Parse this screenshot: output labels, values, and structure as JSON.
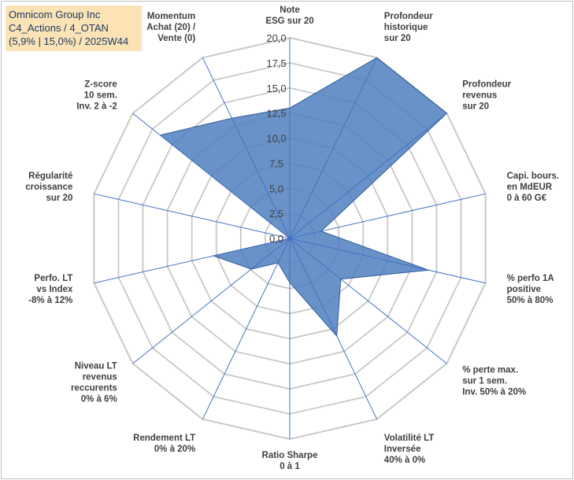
{
  "header": {
    "line1": "Omnicom Group Inc",
    "line2": "C4_Actions / 4_OTAN",
    "line3": "(5,9% | 15,0%) / 2025W44"
  },
  "colors": {
    "fill": "#4f7fbf",
    "stroke": "#2e5c99",
    "grid": "#c8c8c8",
    "axis": "#4472c4",
    "title_bg": "#fbe3b6",
    "title_text": "#1f3864"
  },
  "chart_data": {
    "type": "radar",
    "title": "Omnicom Group Inc",
    "rmin": 0,
    "rmax": 20,
    "tick_step": 2.5,
    "tick_labels": [
      "0,0",
      "2,5",
      "5,0",
      "7,5",
      "10,0",
      "12,5",
      "15,0",
      "17,5",
      "20,0"
    ],
    "categories": [
      [
        "Note",
        "ESG sur 20"
      ],
      [
        "Profondeur",
        "historique",
        "sur 20"
      ],
      [
        "Profondeur",
        "revenus",
        "sur 20"
      ],
      [
        "Capi. bours.",
        "en MdEUR",
        "0 à 60 G€"
      ],
      [
        "% perfo 1A",
        "positive",
        "50% à 80%"
      ],
      [
        "% perte max.",
        "sur 1 sem.",
        "Inv. 50% à 20%"
      ],
      [
        "Volatilité LT",
        "Inversée",
        "40% à 0%"
      ],
      [
        "Ratio Sharpe",
        "0 à 1"
      ],
      [
        "Rendement LT",
        "0% à 20%"
      ],
      [
        "Niveau LT",
        "revenus",
        "reccurents",
        "0% à 6%"
      ],
      [
        "Perfo. LT",
        "vs Index",
        "-8% à 12%"
      ],
      [
        "Régularité",
        "croissance",
        "sur 20"
      ],
      [
        "Z-score",
        "10 sem.",
        "Inv. 2 à -2"
      ],
      [
        "Momentum",
        "Achat (20) /",
        "Vente (0)"
      ]
    ],
    "series": [
      {
        "name": "Omnicom Group Inc",
        "values": [
          13,
          20,
          20,
          3.2,
          14.2,
          6.5,
          10.8,
          4.4,
          2.7,
          4.9,
          7.8,
          0,
          16.5,
          13.3
        ]
      }
    ]
  }
}
